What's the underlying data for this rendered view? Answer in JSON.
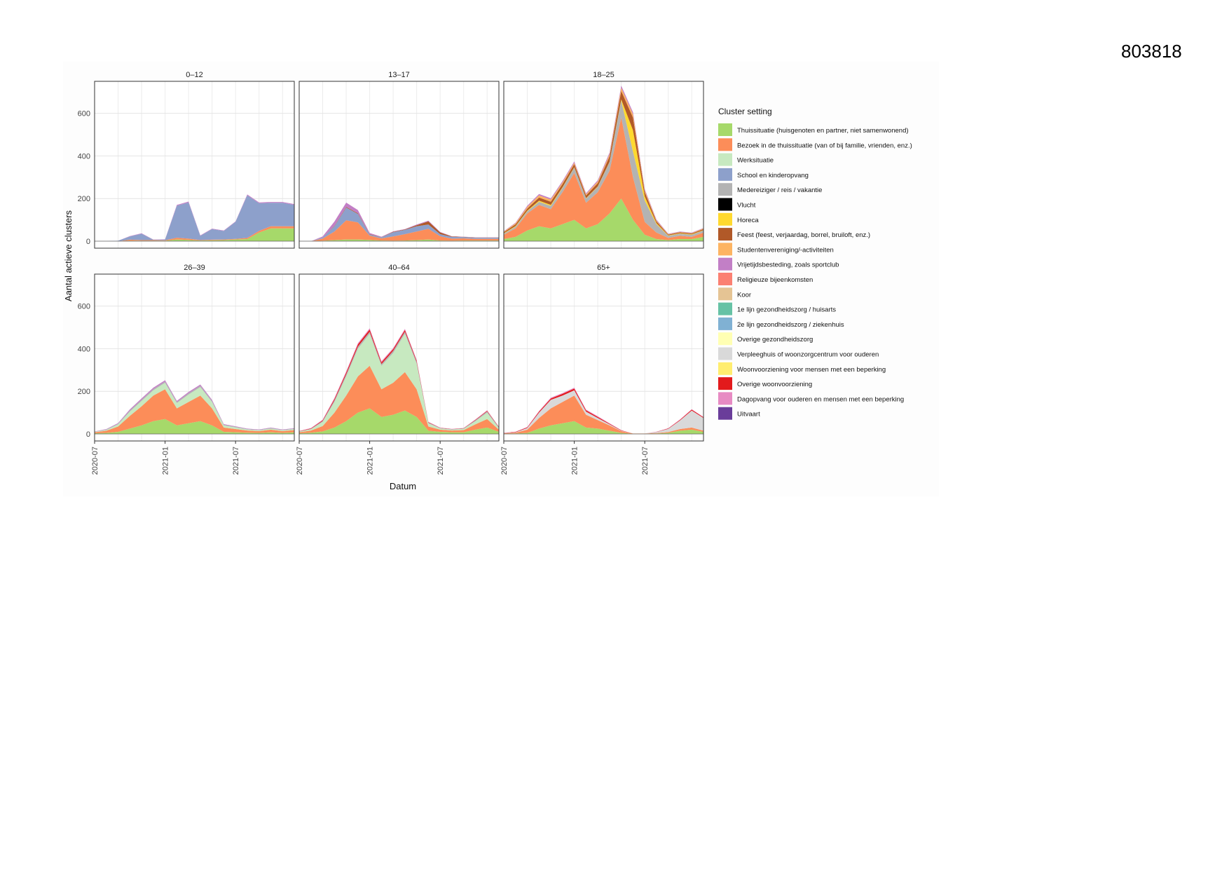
{
  "document_id": "803818",
  "chart_data": {
    "type": "area",
    "stacked": true,
    "faceted": true,
    "xlabel": "Datum",
    "ylabel": "Aantal actieve clusters",
    "ylim": [
      0,
      750
    ],
    "y_ticks": [
      0,
      200,
      400,
      600
    ],
    "x_ticks": [
      "2020-07",
      "2021-01",
      "2021-07"
    ],
    "x_range": [
      "2020-07-01",
      "2021-12-01"
    ],
    "grid": true,
    "legend_title": "Cluster setting",
    "legend_position": "right",
    "x": [
      "2020-07",
      "2020-08",
      "2020-09",
      "2020-10",
      "2020-11",
      "2020-12",
      "2021-01",
      "2021-02",
      "2021-03",
      "2021-04",
      "2021-05",
      "2021-06",
      "2021-07",
      "2021-08",
      "2021-09",
      "2021-10",
      "2021-11",
      "2021-12"
    ],
    "categories": [
      {
        "name": "Thuissituatie (huisgenoten en partner, niet samenwonend)",
        "color": "#a6d96a"
      },
      {
        "name": "Bezoek in de thuissituatie (van of bij familie, vrienden, enz.)",
        "color": "#fc8d59"
      },
      {
        "name": "Werksituatie",
        "color": "#c7e9c0"
      },
      {
        "name": "School en kinderopvang",
        "color": "#8da0cb"
      },
      {
        "name": "Medereiziger / reis / vakantie",
        "color": "#b3b3b3"
      },
      {
        "name": "Vlucht",
        "color": "#000000"
      },
      {
        "name": "Horeca",
        "color": "#ffd92f"
      },
      {
        "name": "Feest (feest, verjaardag, borrel, bruiloft, enz.)",
        "color": "#b15928"
      },
      {
        "name": "Studentenvereniging/-activiteiten",
        "color": "#fdb462"
      },
      {
        "name": "Vrijetijdsbesteding, zoals sportclub",
        "color": "#c27fc6"
      },
      {
        "name": "Religieuze bijeenkomsten",
        "color": "#fb8072"
      },
      {
        "name": "Koor",
        "color": "#e5c494"
      },
      {
        "name": "1e lijn gezondheidszorg / huisarts",
        "color": "#66c2a5"
      },
      {
        "name": "2e lijn gezondheidszorg / ziekenhuis",
        "color": "#80b1d3"
      },
      {
        "name": "Overige gezondheidszorg",
        "color": "#ffffb3"
      },
      {
        "name": "Verpleeghuis of woonzorgcentrum voor ouderen",
        "color": "#d9d9d9"
      },
      {
        "name": "Woonvoorziening voor mensen met een beperking",
        "color": "#ffed6f"
      },
      {
        "name": "Overige woonvoorziening",
        "color": "#e31a1c"
      },
      {
        "name": "Dagopvang voor ouderen en mensen met een beperking",
        "color": "#e78ac3"
      },
      {
        "name": "Uitvaart",
        "color": "#6a3d9a"
      }
    ],
    "panels": [
      {
        "title": "0–12",
        "series": [
          {
            "category": 0,
            "values": [
              0,
              0,
              0,
              2,
              2,
              2,
              2,
              8,
              6,
              3,
              4,
              5,
              8,
              10,
              40,
              60,
              60,
              60
            ]
          },
          {
            "category": 1,
            "values": [
              0,
              0,
              0,
              5,
              3,
              3,
              2,
              8,
              6,
              2,
              3,
              3,
              3,
              5,
              8,
              10,
              10,
              10
            ]
          },
          {
            "category": 3,
            "values": [
              0,
              0,
              2,
              15,
              30,
              2,
              4,
              150,
              170,
              20,
              50,
              40,
              80,
              200,
              130,
              110,
              110,
              100
            ]
          },
          {
            "category": 9,
            "values": [
              0,
              0,
              0,
              2,
              2,
              1,
              1,
              4,
              4,
              2,
              2,
              2,
              2,
              4,
              4,
              4,
              4,
              4
            ]
          }
        ]
      },
      {
        "title": "13–17",
        "series": [
          {
            "category": 0,
            "values": [
              0,
              0,
              2,
              5,
              8,
              8,
              6,
              3,
              2,
              3,
              5,
              8,
              3,
              2,
              3,
              3,
              3,
              3
            ]
          },
          {
            "category": 1,
            "values": [
              0,
              0,
              10,
              40,
              90,
              80,
              20,
              10,
              20,
              30,
              40,
              50,
              20,
              10,
              10,
              8,
              8,
              8
            ]
          },
          {
            "category": 3,
            "values": [
              0,
              0,
              5,
              25,
              60,
              40,
              5,
              5,
              20,
              20,
              25,
              20,
              10,
              8,
              6,
              5,
              5,
              5
            ]
          },
          {
            "category": 7,
            "values": [
              0,
              0,
              0,
              2,
              3,
              3,
              2,
              1,
              2,
              2,
              5,
              15,
              8,
              2,
              1,
              1,
              1,
              1
            ]
          },
          {
            "category": 9,
            "values": [
              0,
              0,
              5,
              20,
              20,
              15,
              5,
              2,
              2,
              2,
              3,
              3,
              2,
              1,
              1,
              1,
              1,
              1
            ]
          }
        ]
      },
      {
        "title": "18–25",
        "series": [
          {
            "category": 0,
            "values": [
              10,
              20,
              50,
              70,
              60,
              80,
              100,
              60,
              80,
              130,
              200,
              100,
              30,
              10,
              5,
              10,
              10,
              20
            ]
          },
          {
            "category": 1,
            "values": [
              20,
              40,
              80,
              100,
              90,
              150,
              220,
              120,
              150,
              200,
              380,
              200,
              60,
              30,
              10,
              15,
              10,
              20
            ]
          },
          {
            "category": 4,
            "values": [
              5,
              8,
              10,
              15,
              15,
              20,
              25,
              20,
              25,
              40,
              80,
              120,
              100,
              40,
              10,
              10,
              10,
              10
            ]
          },
          {
            "category": 6,
            "values": [
              2,
              3,
              3,
              5,
              5,
              3,
              2,
              2,
              2,
              2,
              5,
              100,
              20,
              5,
              2,
              2,
              2,
              2
            ]
          },
          {
            "category": 7,
            "values": [
              5,
              8,
              10,
              15,
              15,
              15,
              15,
              12,
              15,
              25,
              40,
              60,
              20,
              8,
              4,
              4,
              4,
              5
            ]
          },
          {
            "category": 8,
            "values": [
              3,
              5,
              8,
              10,
              10,
              8,
              6,
              6,
              8,
              10,
              15,
              15,
              8,
              4,
              2,
              2,
              2,
              3
            ]
          },
          {
            "category": 9,
            "values": [
              2,
              3,
              5,
              6,
              6,
              6,
              6,
              5,
              6,
              8,
              10,
              10,
              6,
              4,
              2,
              2,
              2,
              2
            ]
          }
        ]
      },
      {
        "title": "26–39",
        "series": [
          {
            "category": 0,
            "values": [
              3,
              5,
              10,
              25,
              40,
              60,
              70,
              40,
              50,
              60,
              40,
              10,
              8,
              6,
              5,
              8,
              5,
              8
            ]
          },
          {
            "category": 1,
            "values": [
              5,
              10,
              25,
              60,
              90,
              120,
              140,
              80,
              100,
              120,
              80,
              20,
              15,
              10,
              8,
              12,
              8,
              10
            ]
          },
          {
            "category": 2,
            "values": [
              2,
              4,
              10,
              20,
              25,
              25,
              30,
              25,
              35,
              40,
              30,
              10,
              8,
              5,
              4,
              5,
              4,
              5
            ]
          },
          {
            "category": 4,
            "values": [
              1,
              2,
              3,
              5,
              6,
              6,
              6,
              5,
              6,
              6,
              5,
              3,
              3,
              2,
              2,
              3,
              2,
              2
            ]
          },
          {
            "category": 9,
            "values": [
              1,
              2,
              3,
              5,
              6,
              6,
              6,
              5,
              6,
              6,
              5,
              3,
              2,
              2,
              2,
              2,
              2,
              2
            ]
          }
        ]
      },
      {
        "title": "40–64",
        "series": [
          {
            "category": 0,
            "values": [
              3,
              6,
              12,
              30,
              60,
              100,
              120,
              80,
              90,
              110,
              80,
              15,
              10,
              8,
              8,
              20,
              30,
              10
            ]
          },
          {
            "category": 1,
            "values": [
              5,
              10,
              25,
              70,
              120,
              170,
              200,
              130,
              150,
              180,
              130,
              20,
              10,
              8,
              10,
              25,
              40,
              10
            ]
          },
          {
            "category": 2,
            "values": [
              3,
              6,
              20,
              50,
              90,
              130,
              150,
              110,
              140,
              180,
              120,
              15,
              6,
              4,
              6,
              15,
              30,
              8
            ]
          },
          {
            "category": 4,
            "values": [
              1,
              2,
              4,
              8,
              10,
              10,
              10,
              8,
              10,
              10,
              8,
              3,
              2,
              2,
              2,
              4,
              6,
              3
            ]
          },
          {
            "category": 17,
            "values": [
              1,
              2,
              3,
              6,
              8,
              10,
              10,
              8,
              8,
              8,
              6,
              2,
              1,
              1,
              1,
              2,
              3,
              2
            ]
          },
          {
            "category": 18,
            "values": [
              1,
              2,
              3,
              5,
              6,
              6,
              6,
              5,
              5,
              5,
              4,
              2,
              1,
              1,
              1,
              2,
              2,
              1
            ]
          }
        ]
      },
      {
        "title": "65+",
        "series": [
          {
            "category": 0,
            "values": [
              1,
              2,
              5,
              25,
              40,
              50,
              60,
              30,
              25,
              15,
              5,
              1,
              1,
              2,
              5,
              15,
              20,
              10
            ]
          },
          {
            "category": 1,
            "values": [
              2,
              4,
              15,
              50,
              80,
              100,
              120,
              60,
              40,
              25,
              8,
              1,
              1,
              2,
              4,
              8,
              10,
              5
            ]
          },
          {
            "category": 15,
            "values": [
              1,
              2,
              8,
              25,
              40,
              30,
              25,
              15,
              10,
              5,
              2,
              0,
              0,
              5,
              15,
              40,
              80,
              60
            ]
          },
          {
            "category": 17,
            "values": [
              1,
              2,
              3,
              5,
              6,
              8,
              8,
              6,
              5,
              3,
              2,
              0,
              0,
              1,
              2,
              3,
              4,
              3
            ]
          },
          {
            "category": 18,
            "values": [
              1,
              1,
              2,
              3,
              4,
              4,
              4,
              3,
              3,
              2,
              1,
              0,
              0,
              1,
              1,
              2,
              2,
              2
            ]
          }
        ]
      }
    ]
  }
}
